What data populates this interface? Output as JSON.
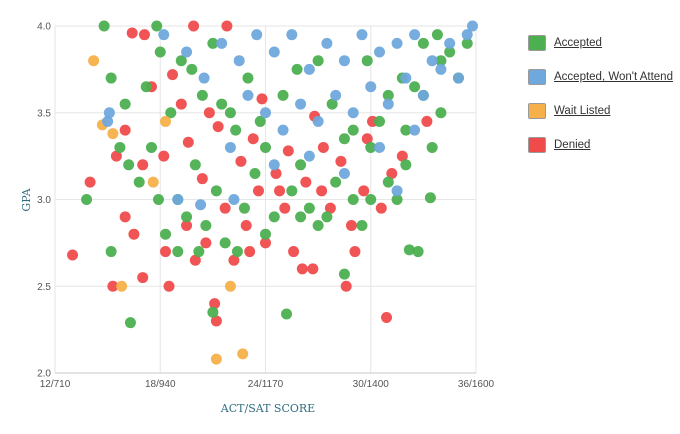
{
  "legend": {
    "items": [
      {
        "label": "Accepted",
        "color": "#4caf50"
      },
      {
        "label": "Accepted, Won't Attend",
        "color": "#6fa8dc"
      },
      {
        "label": "Wait Listed",
        "color": "#f6b04a"
      },
      {
        "label": "Denied",
        "color": "#ef4b4b"
      }
    ]
  },
  "chart_data": {
    "type": "scatter",
    "xlabel": "ACT/SAT SCORE",
    "ylabel": "GPA",
    "x_ticks": [
      "12/710",
      "18/940",
      "24/1170",
      "30/1400",
      "36/1600"
    ],
    "x_tick_values": [
      12,
      18,
      24,
      30,
      36
    ],
    "y_ticks": [
      "2.0",
      "2.5",
      "3.0",
      "3.5",
      "4.0"
    ],
    "y_tick_values": [
      2.0,
      2.5,
      3.0,
      3.5,
      4.0
    ],
    "xlim": [
      12,
      36
    ],
    "ylim": [
      2.0,
      4.0
    ],
    "grid": true,
    "legend_position": "right",
    "series": [
      {
        "name": "Accepted",
        "color": "#4caf50",
        "points": [
          [
            14.8,
            4.0
          ],
          [
            17.8,
            4.0
          ],
          [
            19.2,
            3.8
          ],
          [
            20.4,
            3.6
          ],
          [
            21.0,
            3.9
          ],
          [
            22.0,
            3.5
          ],
          [
            23.0,
            3.7
          ],
          [
            24.0,
            3.3
          ],
          [
            25.0,
            3.6
          ],
          [
            26.0,
            3.2
          ],
          [
            27.0,
            3.8
          ],
          [
            28.0,
            3.1
          ],
          [
            29.0,
            3.4
          ],
          [
            30.0,
            3.0
          ],
          [
            31.0,
            3.6
          ],
          [
            32.0,
            3.2
          ],
          [
            33.0,
            3.9
          ],
          [
            34.0,
            3.5
          ],
          [
            35.0,
            3.7
          ],
          [
            15.2,
            3.7
          ],
          [
            16.0,
            3.55
          ],
          [
            16.2,
            3.2
          ],
          [
            16.8,
            3.1
          ],
          [
            17.5,
            3.3
          ],
          [
            17.9,
            3.0
          ],
          [
            18.3,
            2.8
          ],
          [
            18.6,
            3.5
          ],
          [
            19.0,
            3.0
          ],
          [
            19.5,
            2.9
          ],
          [
            20.0,
            3.2
          ],
          [
            20.6,
            2.85
          ],
          [
            21.2,
            3.05
          ],
          [
            21.7,
            2.75
          ],
          [
            22.3,
            3.4
          ],
          [
            22.8,
            2.95
          ],
          [
            23.4,
            3.15
          ],
          [
            24.5,
            2.9
          ],
          [
            25.5,
            3.05
          ],
          [
            26.5,
            2.95
          ],
          [
            27.5,
            2.9
          ],
          [
            28.5,
            3.35
          ],
          [
            29.5,
            2.85
          ],
          [
            30.5,
            3.45
          ],
          [
            31.5,
            3.0
          ],
          [
            32.5,
            3.65
          ],
          [
            33.5,
            3.3
          ],
          [
            34.5,
            3.85
          ],
          [
            35.5,
            3.9
          ],
          [
            16.3,
            2.29
          ],
          [
            21.0,
            2.35
          ],
          [
            25.2,
            2.34
          ],
          [
            28.5,
            2.57
          ],
          [
            32.2,
            2.71
          ],
          [
            32.7,
            2.7
          ],
          [
            15.2,
            2.7
          ],
          [
            19.0,
            2.7
          ],
          [
            20.2,
            2.7
          ],
          [
            22.4,
            2.7
          ],
          [
            24.0,
            2.8
          ],
          [
            26.0,
            2.9
          ],
          [
            27.0,
            2.85
          ],
          [
            29.0,
            3.0
          ],
          [
            30.0,
            3.3
          ],
          [
            31.0,
            3.1
          ],
          [
            32.0,
            3.4
          ],
          [
            33.0,
            3.6
          ],
          [
            34.0,
            3.8
          ],
          [
            33.4,
            3.01
          ],
          [
            13.8,
            3.0
          ],
          [
            15.7,
            3.3
          ],
          [
            17.2,
            3.65
          ],
          [
            18.0,
            3.85
          ],
          [
            19.8,
            3.75
          ],
          [
            21.5,
            3.55
          ],
          [
            23.7,
            3.45
          ],
          [
            25.8,
            3.75
          ],
          [
            27.8,
            3.55
          ],
          [
            29.8,
            3.8
          ],
          [
            31.8,
            3.7
          ],
          [
            33.8,
            3.95
          ]
        ]
      },
      {
        "name": "Accepted, Won't Attend",
        "color": "#6fa8dc",
        "points": [
          [
            15.1,
            3.5
          ],
          [
            15.0,
            3.45
          ],
          [
            18.2,
            3.95
          ],
          [
            19.5,
            3.85
          ],
          [
            20.5,
            3.7
          ],
          [
            21.5,
            3.9
          ],
          [
            22.5,
            3.8
          ],
          [
            23.5,
            3.95
          ],
          [
            24.5,
            3.85
          ],
          [
            25.5,
            3.95
          ],
          [
            26.5,
            3.75
          ],
          [
            27.5,
            3.9
          ],
          [
            28.5,
            3.8
          ],
          [
            29.5,
            3.95
          ],
          [
            30.5,
            3.85
          ],
          [
            31.5,
            3.9
          ],
          [
            32.5,
            3.95
          ],
          [
            33.5,
            3.8
          ],
          [
            34.5,
            3.9
          ],
          [
            35.5,
            3.95
          ],
          [
            35.8,
            4.0
          ],
          [
            23.0,
            3.6
          ],
          [
            24.0,
            3.5
          ],
          [
            25.0,
            3.4
          ],
          [
            26.0,
            3.55
          ],
          [
            27.0,
            3.45
          ],
          [
            28.0,
            3.6
          ],
          [
            29.0,
            3.5
          ],
          [
            30.0,
            3.65
          ],
          [
            31.0,
            3.55
          ],
          [
            32.0,
            3.7
          ],
          [
            33.0,
            3.6
          ],
          [
            34.0,
            3.75
          ],
          [
            35.0,
            3.7
          ],
          [
            22.0,
            3.3
          ],
          [
            24.5,
            3.2
          ],
          [
            26.5,
            3.25
          ],
          [
            28.5,
            3.15
          ],
          [
            30.5,
            3.3
          ],
          [
            32.5,
            3.4
          ],
          [
            31.5,
            3.05
          ],
          [
            19.0,
            3.0
          ],
          [
            22.2,
            3.0
          ],
          [
            20.3,
            2.97
          ]
        ]
      },
      {
        "name": "Wait Listed",
        "color": "#f6b04a",
        "points": [
          [
            14.2,
            3.8
          ],
          [
            14.7,
            3.43
          ],
          [
            15.3,
            3.38
          ],
          [
            17.6,
            3.1
          ],
          [
            18.3,
            3.45
          ],
          [
            21.2,
            2.08
          ],
          [
            22.0,
            2.5
          ],
          [
            22.7,
            2.11
          ],
          [
            15.8,
            2.5
          ]
        ]
      },
      {
        "name": "Denied",
        "color": "#ef4b4b",
        "points": [
          [
            13.0,
            2.68
          ],
          [
            14.0,
            3.1
          ],
          [
            15.3,
            2.5
          ],
          [
            15.5,
            3.25
          ],
          [
            16.0,
            2.9
          ],
          [
            16.5,
            2.8
          ],
          [
            17.0,
            2.55
          ],
          [
            17.5,
            3.65
          ],
          [
            18.3,
            2.7
          ],
          [
            18.5,
            2.5
          ],
          [
            19.5,
            2.85
          ],
          [
            20.0,
            2.65
          ],
          [
            20.6,
            2.75
          ],
          [
            21.1,
            2.4
          ],
          [
            21.2,
            2.3
          ],
          [
            21.7,
            2.95
          ],
          [
            22.2,
            2.65
          ],
          [
            22.9,
            2.85
          ],
          [
            23.1,
            2.7
          ],
          [
            23.6,
            3.05
          ],
          [
            24.0,
            2.75
          ],
          [
            24.6,
            3.15
          ],
          [
            25.1,
            2.95
          ],
          [
            25.6,
            2.7
          ],
          [
            26.1,
            2.6
          ],
          [
            26.7,
            2.6
          ],
          [
            27.2,
            3.05
          ],
          [
            27.7,
            2.95
          ],
          [
            28.6,
            2.5
          ],
          [
            28.9,
            2.85
          ],
          [
            29.1,
            2.7
          ],
          [
            29.6,
            3.05
          ],
          [
            30.1,
            3.45
          ],
          [
            30.6,
            2.95
          ],
          [
            30.9,
            2.32
          ],
          [
            31.2,
            3.15
          ],
          [
            16.4,
            3.96
          ],
          [
            18.7,
            3.72
          ],
          [
            19.6,
            3.33
          ],
          [
            20.4,
            3.12
          ],
          [
            21.3,
            3.42
          ],
          [
            22.6,
            3.22
          ],
          [
            23.8,
            3.58
          ],
          [
            25.3,
            3.28
          ],
          [
            26.8,
            3.48
          ],
          [
            28.3,
            3.22
          ],
          [
            29.8,
            3.35
          ],
          [
            31.8,
            3.25
          ],
          [
            33.2,
            3.45
          ],
          [
            18.2,
            3.25
          ],
          [
            19.2,
            3.55
          ],
          [
            20.8,
            3.5
          ],
          [
            23.3,
            3.35
          ],
          [
            24.8,
            3.05
          ],
          [
            26.3,
            3.1
          ],
          [
            27.3,
            3.3
          ],
          [
            17.1,
            3.95
          ],
          [
            19.9,
            4.0
          ],
          [
            21.8,
            4.0
          ],
          [
            16.0,
            3.4
          ],
          [
            17.0,
            3.2
          ]
        ]
      }
    ]
  }
}
